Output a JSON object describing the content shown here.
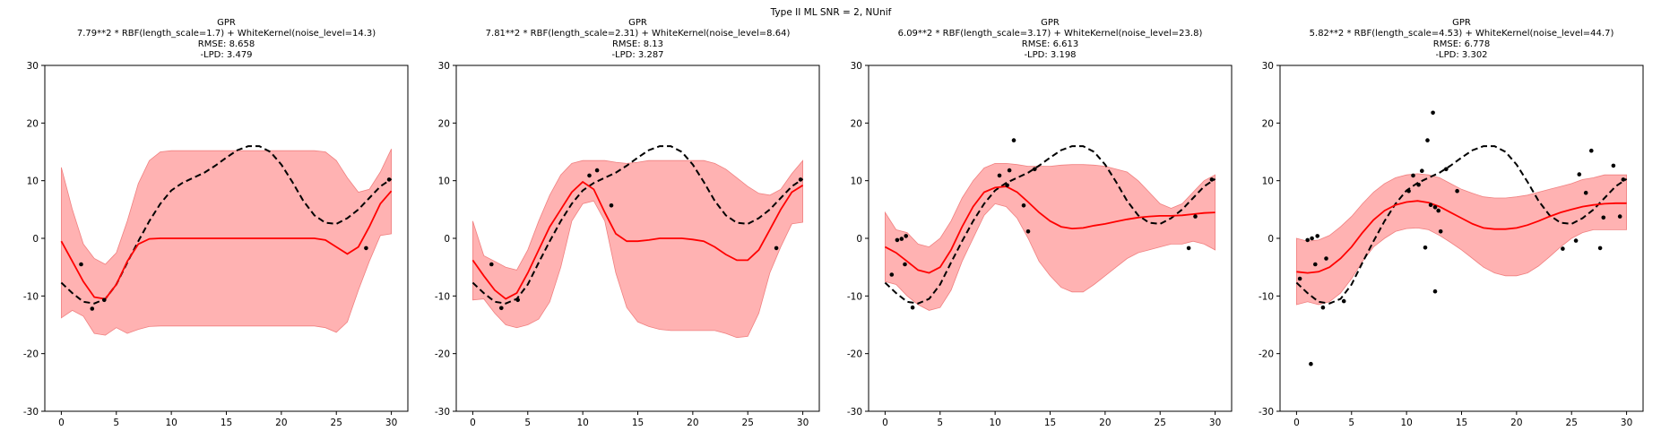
{
  "figure": {
    "suptitle": "Type II ML SNR = 2, NUnif"
  },
  "colors": {
    "band": "#ff7f7f",
    "band_edge": "#f08080",
    "mean": "#ff0000",
    "truth": "#000000",
    "points": "#000000"
  },
  "chart_data": [
    {
      "type": "line",
      "title_lines": [
        "GPR",
        "7.79**2 * RBF(length_scale=1.7) + WhiteKernel(noise_level=14.3)",
        "RMSE: 8.658",
        "-LPD: 3.479"
      ],
      "xlim": [
        -1.5,
        31.5
      ],
      "ylim": [
        -30,
        30
      ],
      "xticks": [
        0,
        5,
        10,
        15,
        20,
        25,
        30
      ],
      "yticks": [
        -30,
        -20,
        -10,
        0,
        10,
        20,
        30
      ],
      "grid": false,
      "x": [
        0,
        1,
        2,
        3,
        4,
        5,
        6,
        7,
        8,
        9,
        10,
        11,
        12,
        13,
        14,
        15,
        16,
        17,
        18,
        19,
        20,
        21,
        22,
        23,
        24,
        25,
        26,
        27,
        28,
        29,
        30
      ],
      "truth": [
        -7.7,
        -9.5,
        -11,
        -11.3,
        -10.5,
        -8,
        -4.2,
        -0.5,
        3,
        6,
        8.3,
        9.6,
        10.5,
        11.4,
        12.6,
        14,
        15.3,
        16,
        16,
        15,
        12.8,
        9.8,
        6.5,
        4,
        2.7,
        2.5,
        3.5,
        5,
        7,
        9,
        10.3
      ],
      "mean": [
        -0.5,
        -4,
        -7.5,
        -10.2,
        -10.5,
        -8,
        -4,
        -1,
        -0.1,
        0,
        0,
        0,
        0,
        0,
        0,
        0,
        0,
        0,
        0,
        0,
        0,
        0,
        0,
        0,
        -0.3,
        -1.5,
        -2.7,
        -1.5,
        2,
        6,
        8.2
      ],
      "upper": [
        12.3,
        5,
        -1,
        -3.5,
        -4.5,
        -2.5,
        3,
        9.5,
        13.5,
        15,
        15.2,
        15.2,
        15.2,
        15.2,
        15.2,
        15.2,
        15.2,
        15.2,
        15.2,
        15.2,
        15.2,
        15.2,
        15.2,
        15.2,
        15,
        13.5,
        10.5,
        8,
        8.5,
        11.5,
        15.5
      ],
      "lower": [
        -13.8,
        -12.5,
        -13.5,
        -16.5,
        -16.8,
        -15.5,
        -16.5,
        -15.8,
        -15.3,
        -15.2,
        -15.2,
        -15.2,
        -15.2,
        -15.2,
        -15.2,
        -15.2,
        -15.2,
        -15.2,
        -15.2,
        -15.2,
        -15.2,
        -15.2,
        -15.2,
        -15.2,
        -15.5,
        -16.3,
        -14.5,
        -9,
        -4,
        0.5,
        0.8
      ],
      "points": [
        [
          1.8,
          -4.5
        ],
        [
          2.8,
          -12.2
        ],
        [
          3.9,
          -10.7
        ],
        [
          27.7,
          -1.7
        ],
        [
          29.8,
          10.2
        ]
      ]
    },
    {
      "type": "line",
      "title_lines": [
        "GPR",
        "7.81**2 * RBF(length_scale=2.31) + WhiteKernel(noise_level=8.64)",
        "RMSE: 8.13",
        "-LPD: 3.287"
      ],
      "xlim": [
        -1.5,
        31.5
      ],
      "ylim": [
        -30,
        30
      ],
      "xticks": [
        0,
        5,
        10,
        15,
        20,
        25,
        30
      ],
      "yticks": [
        -30,
        -20,
        -10,
        0,
        10,
        20,
        30
      ],
      "grid": false,
      "x": [
        0,
        1,
        2,
        3,
        4,
        5,
        6,
        7,
        8,
        9,
        10,
        11,
        12,
        13,
        14,
        15,
        16,
        17,
        18,
        19,
        20,
        21,
        22,
        23,
        24,
        25,
        26,
        27,
        28,
        29,
        30
      ],
      "truth": [
        -7.7,
        -9.5,
        -11,
        -11.3,
        -10.5,
        -8,
        -4.2,
        -0.5,
        3,
        6,
        8.3,
        9.6,
        10.5,
        11.4,
        12.6,
        14,
        15.3,
        16,
        16,
        15,
        12.8,
        9.8,
        6.5,
        4,
        2.7,
        2.5,
        3.5,
        5,
        7,
        9,
        10.3
      ],
      "mean": [
        -3.8,
        -6.5,
        -9,
        -10.5,
        -9.5,
        -6,
        -2,
        2,
        5,
        8,
        9.8,
        8.5,
        4.5,
        0.8,
        -0.5,
        -0.5,
        -0.3,
        0,
        0,
        0,
        -0.2,
        -0.5,
        -1.5,
        -2.8,
        -3.8,
        -3.8,
        -2,
        1.5,
        5,
        8,
        9.2
      ],
      "upper": [
        3,
        -3,
        -4,
        -5,
        -5.5,
        -2,
        3,
        7.5,
        11,
        13,
        13.5,
        13.5,
        13.5,
        13.2,
        13,
        13.2,
        13.5,
        13.5,
        13.5,
        13.5,
        13.5,
        13.5,
        13,
        12,
        10.5,
        9,
        7.8,
        7.5,
        8.5,
        11.2,
        13.5
      ],
      "lower": [
        -10.7,
        -10.5,
        -13,
        -15,
        -15.5,
        -15,
        -14,
        -11,
        -5,
        3,
        6,
        6.5,
        3,
        -6,
        -12,
        -14.5,
        -15.3,
        -15.8,
        -16,
        -16,
        -16,
        -16,
        -16,
        -16.5,
        -17.2,
        -17,
        -13,
        -6,
        -1.5,
        2.5,
        2.8
      ],
      "points": [
        [
          1.7,
          -4.5
        ],
        [
          2.6,
          -12.1
        ],
        [
          4.1,
          -10.7
        ],
        [
          10.6,
          10.9
        ],
        [
          11.3,
          11.8
        ],
        [
          12.6,
          5.7
        ],
        [
          27.6,
          -1.7
        ],
        [
          29.8,
          10.2
        ]
      ]
    },
    {
      "type": "line",
      "title_lines": [
        "GPR",
        "6.09**2 * RBF(length_scale=3.17) + WhiteKernel(noise_level=23.8)",
        "RMSE: 6.613",
        "-LPD: 3.198"
      ],
      "xlim": [
        -1.5,
        31.5
      ],
      "ylim": [
        -30,
        30
      ],
      "xticks": [
        0,
        5,
        10,
        15,
        20,
        25,
        30
      ],
      "yticks": [
        -30,
        -20,
        -10,
        0,
        10,
        20,
        30
      ],
      "grid": false,
      "x": [
        0,
        1,
        2,
        3,
        4,
        5,
        6,
        7,
        8,
        9,
        10,
        11,
        12,
        13,
        14,
        15,
        16,
        17,
        18,
        19,
        20,
        21,
        22,
        23,
        24,
        25,
        26,
        27,
        28,
        29,
        30
      ],
      "truth": [
        -7.7,
        -9.5,
        -11,
        -11.3,
        -10.5,
        -8,
        -4.2,
        -0.5,
        3,
        6,
        8.3,
        9.6,
        10.5,
        11.4,
        12.6,
        14,
        15.3,
        16,
        16,
        15,
        12.8,
        9.8,
        6.5,
        4,
        2.7,
        2.5,
        3.5,
        5,
        7,
        9,
        10.3
      ],
      "mean": [
        -1.5,
        -2.5,
        -4,
        -5.5,
        -6,
        -5,
        -2,
        2,
        5.5,
        8,
        8.8,
        9,
        8,
        6.3,
        4.5,
        3,
        2,
        1.7,
        1.8,
        2.2,
        2.5,
        2.9,
        3.3,
        3.6,
        3.8,
        3.9,
        3.9,
        4,
        4.2,
        4.4,
        4.5
      ],
      "upper": [
        4.5,
        1.5,
        1,
        -1,
        -1.5,
        0,
        3,
        7,
        10,
        12.2,
        13,
        13,
        12.8,
        12.5,
        12.5,
        12.5,
        12.7,
        12.8,
        12.8,
        12.7,
        12.5,
        12,
        11.5,
        10,
        8,
        6,
        5.2,
        6,
        8,
        10,
        11
      ],
      "lower": [
        -7.5,
        -8,
        -10,
        -11.5,
        -12.5,
        -12,
        -9,
        -4,
        0,
        4,
        6,
        5.5,
        3.5,
        0,
        -4,
        -6.5,
        -8.5,
        -9.3,
        -9.3,
        -8,
        -6.5,
        -5,
        -3.5,
        -2.5,
        -2,
        -1.5,
        -1,
        -1,
        -0.5,
        -1,
        -2
      ],
      "points": [
        [
          0.6,
          -6.3
        ],
        [
          1.1,
          -0.3
        ],
        [
          1.5,
          -0.1
        ],
        [
          1.8,
          -4.5
        ],
        [
          1.9,
          0.4
        ],
        [
          2.5,
          -12
        ],
        [
          10.4,
          10.9
        ],
        [
          11.1,
          9.2
        ],
        [
          11.3,
          11.8
        ],
        [
          11.7,
          17
        ],
        [
          12.6,
          5.7
        ],
        [
          13,
          1.2
        ],
        [
          13.6,
          12
        ],
        [
          27.6,
          -1.7
        ],
        [
          28.2,
          3.8
        ],
        [
          29.7,
          10.2
        ]
      ]
    },
    {
      "type": "line",
      "title_lines": [
        "GPR",
        "5.82**2 * RBF(length_scale=4.53) + WhiteKernel(noise_level=44.7)",
        "RMSE: 6.778",
        "-LPD: 3.302"
      ],
      "xlim": [
        -1.5,
        31.5
      ],
      "ylim": [
        -30,
        30
      ],
      "xticks": [
        0,
        5,
        10,
        15,
        20,
        25,
        30
      ],
      "yticks": [
        -30,
        -20,
        -10,
        0,
        10,
        20,
        30
      ],
      "grid": false,
      "x": [
        0,
        1,
        2,
        3,
        4,
        5,
        6,
        7,
        8,
        9,
        10,
        11,
        12,
        13,
        14,
        15,
        16,
        17,
        18,
        19,
        20,
        21,
        22,
        23,
        24,
        25,
        26,
        27,
        28,
        29,
        30
      ],
      "truth": [
        -7.7,
        -9.5,
        -11,
        -11.3,
        -10.5,
        -8,
        -4.2,
        -0.5,
        3,
        6,
        8.3,
        9.6,
        10.5,
        11.4,
        12.6,
        14,
        15.3,
        16,
        16,
        15,
        12.8,
        9.8,
        6.5,
        4,
        2.7,
        2.5,
        3.5,
        5,
        7,
        9,
        10.3
      ],
      "mean": [
        -5.8,
        -6,
        -5.8,
        -5,
        -3.5,
        -1.5,
        1,
        3.2,
        4.8,
        5.8,
        6.3,
        6.5,
        6.2,
        5.5,
        4.5,
        3.5,
        2.5,
        1.8,
        1.6,
        1.6,
        1.8,
        2.3,
        3,
        3.8,
        4.5,
        5,
        5.5,
        5.8,
        6,
        6.1,
        6.1
      ],
      "upper": [
        0,
        -0.5,
        -0.3,
        0.5,
        2,
        3.8,
        6,
        8,
        9.5,
        10.5,
        11,
        11.2,
        11,
        10.5,
        9.5,
        8.5,
        7.8,
        7.2,
        7,
        7,
        7.2,
        7.5,
        8,
        8.5,
        9,
        9.5,
        10.2,
        10.5,
        11,
        11,
        11
      ],
      "lower": [
        -11.5,
        -11,
        -11.5,
        -11,
        -9.5,
        -7,
        -4,
        -1.5,
        0,
        1.2,
        1.7,
        1.8,
        1.5,
        0.5,
        -0.7,
        -2,
        -3.5,
        -5,
        -6,
        -6.5,
        -6.5,
        -6,
        -4.8,
        -3.2,
        -1.5,
        0,
        1,
        1.5,
        1.5,
        1.5,
        1.5
      ],
      "points": [
        [
          0.3,
          -7
        ],
        [
          1,
          -0.3
        ],
        [
          1.3,
          -21.8
        ],
        [
          1.4,
          0
        ],
        [
          1.7,
          -4.5
        ],
        [
          1.9,
          0.4
        ],
        [
          2.4,
          -12
        ],
        [
          2.7,
          -3.5
        ],
        [
          4.3,
          -10.9
        ],
        [
          10.2,
          8.2
        ],
        [
          10.6,
          10.9
        ],
        [
          11.1,
          9.3
        ],
        [
          11.4,
          11.7
        ],
        [
          11.7,
          -1.6
        ],
        [
          11.9,
          17
        ],
        [
          12.2,
          5.8
        ],
        [
          12.4,
          21.8
        ],
        [
          12.6,
          -9.2
        ],
        [
          12.6,
          5.4
        ],
        [
          12.9,
          4.8
        ],
        [
          13.1,
          1.2
        ],
        [
          13.6,
          12
        ],
        [
          14.6,
          8.2
        ],
        [
          24.2,
          -1.8
        ],
        [
          25.4,
          -0.4
        ],
        [
          25.7,
          11.1
        ],
        [
          26.3,
          7.9
        ],
        [
          26.8,
          15.2
        ],
        [
          27.6,
          -1.7
        ],
        [
          27.9,
          3.6
        ],
        [
          28.8,
          12.6
        ],
        [
          29.4,
          3.8
        ],
        [
          29.7,
          10.2
        ]
      ]
    }
  ]
}
